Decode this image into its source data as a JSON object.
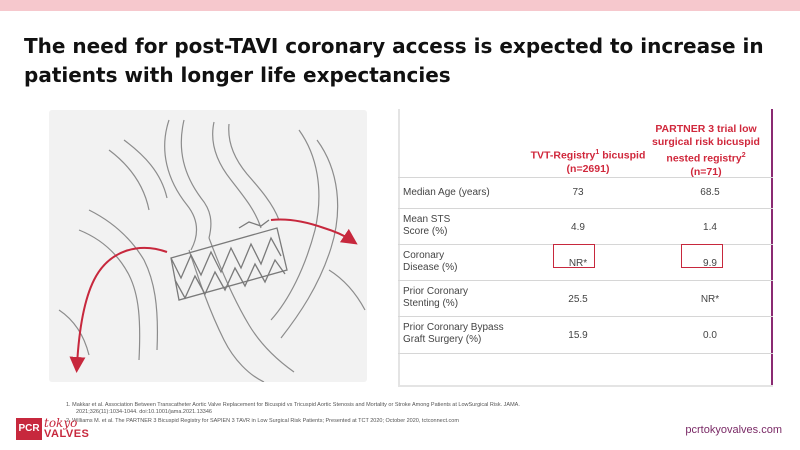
{
  "slide": {
    "title": "The need for post-TAVI coronary access is expected to increase in patients with longer life expectancies"
  },
  "table": {
    "columns": [
      {
        "label": "TVT-Registry",
        "sup": "1",
        "label_rest": " bicuspid",
        "sub": "(n=2691)"
      },
      {
        "line1": "PARTNER  3 trial low",
        "line2": "surgical risk bicuspid",
        "line3": "nested registry",
        "sup": "2",
        "sub": "(n=71)"
      }
    ],
    "rows": [
      {
        "label_1": "Median Age (years)",
        "label_2": "",
        "v1": "73",
        "v2": "68.5"
      },
      {
        "label_1": "Mean STS",
        "label_2": "Score (%)",
        "v1": "4.9",
        "v2": "1.4"
      },
      {
        "label_1": "Coronary",
        "label_2": "Disease (%)",
        "v1": "NR*",
        "v2": "9.9"
      },
      {
        "label_1": "Prior Coronary",
        "label_2": "Stenting (%)",
        "v1": "25.5",
        "v2": "NR*"
      },
      {
        "label_1": "Prior Coronary Bypass",
        "label_2": "Graft Surgery (%)",
        "v1": "15.9",
        "v2": "0.0"
      }
    ]
  },
  "footnotes": {
    "f1_line1": "1.   Makkar et al. Association Between Transcatheter Aortic Valve Replacement for Bicuspid vs Tricuspid Aortic Stenosis and Mortality or Stroke Among Patients at LowSurgical Risk. JAMA.",
    "f1_line2": "2021;326(11):1034-1044.   doi:10.1001/jama.2021.13346",
    "f2": "2.   Williams M. et al. The PARTNER 3 Bicuspid Registry for SAPIEN 3 TAVR in Low Surgical Risk Patients; Presented at TCT 2020; October 2020, tctconnect.com"
  },
  "logo": {
    "pcr": "PCR",
    "tokyo": "tokyo",
    "valves": "VALVES"
  },
  "footer": {
    "url": "pcrtokyovalves.com"
  },
  "colors": {
    "accent": "#c7283d",
    "frame": "#8a2a72",
    "banner": "#f6c8cd"
  },
  "icons": {
    "illustration": "aortic-root-tavi-illustration"
  }
}
